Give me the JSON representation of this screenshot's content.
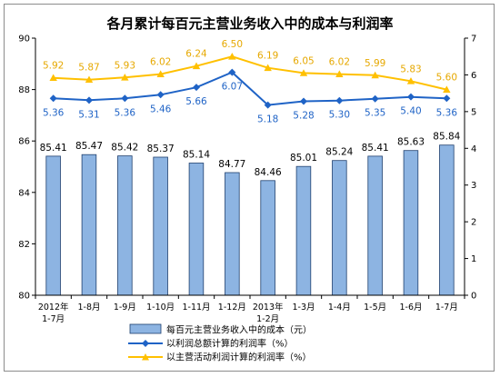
{
  "chart_data": {
    "type": "bar",
    "title": "各月累计每百元主营业务收入中的成本与利润率",
    "categories": [
      [
        "2012年",
        "1-7月"
      ],
      [
        "1-8月"
      ],
      [
        "1-9月"
      ],
      [
        "1-10月"
      ],
      [
        "1-11月"
      ],
      [
        "1-12月"
      ],
      [
        "2013年",
        "1-2月"
      ],
      [
        "1-3月"
      ],
      [
        "1-4月"
      ],
      [
        "1-5月"
      ],
      [
        "1-6月"
      ],
      [
        "1-7月"
      ]
    ],
    "y_left": {
      "min": 80,
      "max": 90,
      "ticks": [
        80,
        82,
        84,
        86,
        88,
        90
      ]
    },
    "y_right": {
      "min": 0,
      "max": 7,
      "ticks": [
        0,
        1,
        2,
        3,
        4,
        5,
        6,
        7
      ]
    },
    "grid": false,
    "legend_position": "bottom",
    "series": [
      {
        "name": "每百元主营业务收入中的成本（元）",
        "type": "bar",
        "axis": "left",
        "color": "#8db4e2",
        "values": [
          85.41,
          85.47,
          85.42,
          85.37,
          85.14,
          84.77,
          84.46,
          85.01,
          85.24,
          85.41,
          85.63,
          85.84
        ],
        "labels": [
          "85.41",
          "85.47",
          "85.42",
          "85.37",
          "85.14",
          "84.77",
          "84.46",
          "85.01",
          "85.24",
          "85.41",
          "85.63",
          "85.84"
        ]
      },
      {
        "name": "以利润总额计算的利润率（%）",
        "type": "line",
        "axis": "right",
        "color": "#1f63c6",
        "label_color": "#1f63c6",
        "values": [
          5.36,
          5.31,
          5.36,
          5.46,
          5.66,
          6.07,
          5.18,
          5.28,
          5.3,
          5.35,
          5.4,
          5.36
        ],
        "labels": [
          "5.36",
          "5.31",
          "5.36",
          "5.46",
          "5.66",
          "6.07",
          "5.18",
          "5.28",
          "5.30",
          "5.35",
          "5.40",
          "5.36"
        ]
      },
      {
        "name": "以主营活动利润计算的利润率（%）",
        "type": "line",
        "axis": "right",
        "color": "#ffc000",
        "label_color": "#e6a800",
        "values": [
          5.92,
          5.87,
          5.93,
          6.02,
          6.24,
          6.5,
          6.19,
          6.05,
          6.02,
          5.99,
          5.83,
          5.6
        ],
        "labels": [
          "5.92",
          "5.87",
          "5.93",
          "6.02",
          "6.24",
          "6.50",
          "6.19",
          "6.05",
          "6.02",
          "5.99",
          "5.83",
          "5.60"
        ]
      }
    ]
  }
}
